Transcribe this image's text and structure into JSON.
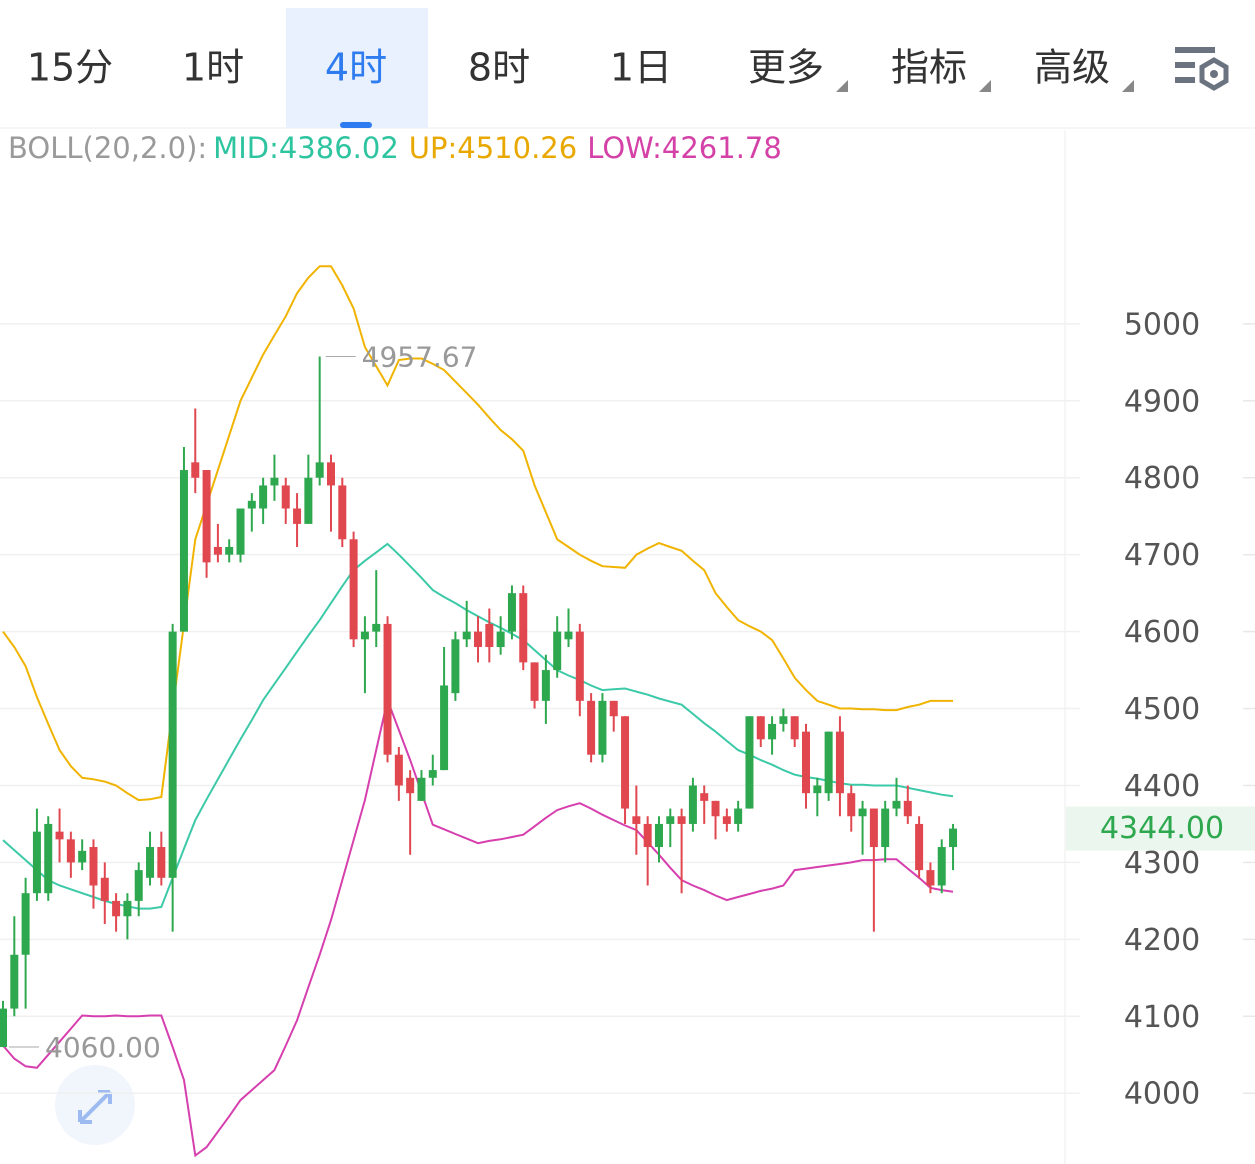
{
  "tabs": [
    {
      "label": "15分"
    },
    {
      "label": "1时"
    },
    {
      "label": "4时",
      "active": true
    },
    {
      "label": "8时"
    },
    {
      "label": "1日"
    },
    {
      "label": "更多",
      "dropdown": true
    },
    {
      "label": "指标",
      "dropdown": true
    },
    {
      "label": "高级",
      "dropdown": true
    }
  ],
  "chart_data": {
    "type": "candlestick",
    "indicator": {
      "label": "BOLL(20,2.0):",
      "label_color": "#9a9a9a",
      "items": [
        {
          "text": "MID:4386.02",
          "color": "#2fc4a0"
        },
        {
          "text": "UP:4510.26",
          "color": "#e8a800"
        },
        {
          "text": "LOW:4261.78",
          "color": "#d442a8"
        }
      ]
    },
    "open": [
      4060,
      4110,
      4180,
      4260,
      4260,
      4340,
      4330,
      4300,
      4320,
      4280,
      4250,
      4230,
      4250,
      4280,
      4320,
      4280,
      4600,
      4820,
      4810,
      4710,
      4700,
      4700,
      4760,
      4760,
      4790,
      4790,
      4760,
      4740,
      4800,
      4820,
      4790,
      4720,
      4590,
      4600,
      4610,
      4440,
      4410,
      4380,
      4410,
      4420,
      4520,
      4590,
      4600,
      4610,
      4580,
      4600,
      4650,
      4560,
      4510,
      4550,
      4590,
      4600,
      4510,
      4440,
      4510,
      4490,
      4360,
      4350,
      4320,
      4350,
      4360,
      4350,
      4390,
      4380,
      4360,
      4350,
      4370,
      4490,
      4460,
      4480,
      4490,
      4470,
      4390,
      4390,
      4470,
      4390,
      4360,
      4370,
      4320,
      4370,
      4380,
      4350,
      4290,
      4270,
      4320
    ],
    "high": [
      4120,
      4230,
      4280,
      4370,
      4360,
      4370,
      4340,
      4330,
      4330,
      4300,
      4260,
      4260,
      4300,
      4340,
      4340,
      4610,
      4840,
      4890,
      4810,
      4740,
      4720,
      4760,
      4780,
      4800,
      4830,
      4800,
      4780,
      4830,
      4957.67,
      4830,
      4800,
      4730,
      4620,
      4680,
      4620,
      4450,
      4420,
      4420,
      4440,
      4580,
      4600,
      4640,
      4620,
      4630,
      4620,
      4660,
      4660,
      4560,
      4570,
      4620,
      4630,
      4610,
      4520,
      4520,
      4510,
      4490,
      4400,
      4360,
      4360,
      4370,
      4370,
      4410,
      4400,
      4380,
      4370,
      4380,
      4490,
      4490,
      4490,
      4500,
      4490,
      4480,
      4410,
      4470,
      4490,
      4400,
      4380,
      4370,
      4380,
      4410,
      4400,
      4360,
      4300,
      4330,
      4350
    ],
    "low": [
      4060,
      4100,
      4110,
      4250,
      4250,
      4300,
      4280,
      4290,
      4240,
      4220,
      4210,
      4200,
      4230,
      4270,
      4270,
      4210,
      4600,
      4780,
      4670,
      4690,
      4690,
      4690,
      4730,
      4740,
      4770,
      4740,
      4710,
      4740,
      4790,
      4730,
      4710,
      4580,
      4520,
      4580,
      4430,
      4380,
      4310,
      4380,
      4400,
      4420,
      4510,
      4580,
      4560,
      4560,
      4570,
      4590,
      4550,
      4500,
      4480,
      4540,
      4580,
      4490,
      4430,
      4430,
      4470,
      4350,
      4310,
      4270,
      4300,
      4320,
      4260,
      4340,
      4350,
      4330,
      4340,
      4340,
      4370,
      4450,
      4440,
      4470,
      4450,
      4370,
      4360,
      4380,
      4360,
      4340,
      4310,
      4210,
      4300,
      4360,
      4350,
      4280,
      4260,
      4260,
      4290
    ],
    "close": [
      4110,
      4180,
      4260,
      4340,
      4350,
      4330,
      4300,
      4315,
      4270,
      4250,
      4230,
      4250,
      4290,
      4320,
      4280,
      4600,
      4810,
      4800,
      4690,
      4700,
      4710,
      4760,
      4770,
      4790,
      4800,
      4760,
      4740,
      4800,
      4820,
      4790,
      4720,
      4590,
      4600,
      4610,
      4440,
      4400,
      4390,
      4410,
      4420,
      4530,
      4590,
      4600,
      4580,
      4580,
      4600,
      4650,
      4560,
      4510,
      4550,
      4600,
      4600,
      4510,
      4440,
      4510,
      4490,
      4370,
      4350,
      4320,
      4350,
      4360,
      4350,
      4400,
      4380,
      4360,
      4350,
      4370,
      4490,
      4460,
      4480,
      4490,
      4460,
      4390,
      4400,
      4470,
      4390,
      4360,
      4370,
      4320,
      4370,
      4380,
      4360,
      4290,
      4270,
      4320,
      4344
    ],
    "up_color": "#2ea84e",
    "down_color": "#e0474f",
    "bands": [
      {
        "color": "#f0b400",
        "values": [
          4600,
          4580,
          4555,
          4515,
          4480,
          4446,
          4425,
          4410,
          4408,
          4405,
          4400,
          4390,
          4381,
          4382,
          4385,
          4500,
          4610,
          4720,
          4765,
          4810,
          4855,
          4900,
          4930,
          4960,
          4985,
          5010,
          5040,
          5060,
          5075,
          5075,
          5050,
          5020,
          4970,
          4945,
          4920,
          4953,
          4955,
          4955,
          4948,
          4940,
          4925,
          4910,
          4895,
          4878,
          4862,
          4850,
          4835,
          4790,
          4755,
          4720,
          4710,
          4700,
          4692,
          4685,
          4684,
          4683,
          4700,
          4708,
          4715,
          4710,
          4705,
          4692,
          4680,
          4650,
          4632,
          4615,
          4607,
          4600,
          4589,
          4565,
          4540,
          4524,
          4510,
          4505,
          4500,
          4500,
          4499,
          4499,
          4498,
          4498,
          4502,
          4505,
          4510,
          4510,
          4510
        ]
      },
      {
        "color": "#3cc9a8",
        "values": [
          4329,
          4316,
          4303,
          4290,
          4277,
          4270,
          4265,
          4260,
          4255,
          4250,
          4246,
          4243,
          4240,
          4240,
          4242,
          4280,
          4318,
          4355,
          4382,
          4408,
          4434,
          4460,
          4485,
          4511,
          4532,
          4553,
          4574,
          4595,
          4615,
          4637,
          4659,
          4680,
          4692,
          4703,
          4714,
          4700,
          4685,
          4670,
          4654,
          4645,
          4637,
          4628,
          4620,
          4612,
          4605,
          4597,
          4589,
          4576,
          4563,
          4550,
          4543,
          4537,
          4530,
          4524,
          4525,
          4526,
          4522,
          4518,
          4513,
          4509,
          4505,
          4493,
          4481,
          4470,
          4458,
          4446,
          4440,
          4433,
          4427,
          4420,
          4414,
          4411,
          4409,
          4406,
          4403,
          4401,
          4401,
          4400,
          4400,
          4400,
          4397,
          4394,
          4391,
          4388,
          4386
        ]
      },
      {
        "color": "#d63fae",
        "values": [
          4062,
          4045,
          4035,
          4033,
          4050,
          4067,
          4084,
          4101,
          4100,
          4100,
          4101,
          4100,
          4100,
          4101,
          4101,
          4060,
          4017,
          3919,
          3930,
          3950,
          3970,
          3991,
          4004,
          4017,
          4030,
          4062,
          4095,
          4138,
          4180,
          4225,
          4277,
          4329,
          4381,
          4446,
          4511,
          4472,
          4433,
          4391,
          4349,
          4343,
          4337,
          4331,
          4325,
          4328,
          4330,
          4333,
          4336,
          4347,
          4358,
          4368,
          4373,
          4377,
          4370,
          4362,
          4355,
          4348,
          4342,
          4326,
          4310,
          4293,
          4277,
          4270,
          4264,
          4257,
          4251,
          4255,
          4259,
          4263,
          4266,
          4270,
          4290,
          4292,
          4294,
          4296,
          4298,
          4300,
          4303,
          4303,
          4304,
          4304,
          4292,
          4280,
          4267,
          4264,
          4262
        ]
      }
    ],
    "high_annotation": 4957.67,
    "low_annotation": {
      "value": 4060,
      "label": "4060.00"
    },
    "last_price": {
      "value": 4344,
      "label": "4344.00",
      "color": "#2ea84e"
    },
    "ylim": [
      3908,
      5252
    ],
    "yticks": [
      4000,
      4100,
      4200,
      4300,
      4400,
      4500,
      4600,
      4700,
      4800,
      4900,
      5000
    ],
    "grid": true
  }
}
